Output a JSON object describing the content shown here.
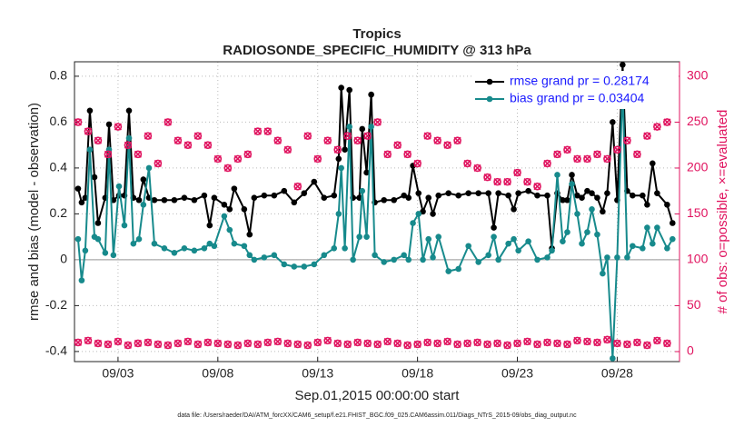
{
  "chart_data": {
    "type": "line",
    "title": "Tropics",
    "subtitle": "RADIOSONDE_SPECIFIC_HUMIDITY @ 313 hPa",
    "x_label": "Sep.01,2015 00:00:00 start",
    "y_label": "rmse and bias (model - observation)",
    "y2_label": "# of obs: o=possible, ×=evaluated",
    "footnote": "data file: /Users/raeder/DAI/ATM_forcXX/CAM6_setup/f.e21.FHIST_BGC.f09_025.CAM6assim.011/Diags_NTrS_2015-09/obs_diag_output.nc",
    "xlim": [
      0.82,
      31.12
    ],
    "xticks": [
      {
        "value": 3,
        "label": "09/03"
      },
      {
        "value": 8,
        "label": "09/08"
      },
      {
        "value": 13,
        "label": "09/13"
      },
      {
        "value": 18,
        "label": "09/18"
      },
      {
        "value": 23,
        "label": "09/23"
      },
      {
        "value": 28,
        "label": "09/28"
      }
    ],
    "ylim": [
      -0.444,
      0.863
    ],
    "yticks": [
      -0.4,
      -0.2,
      0,
      0.2,
      0.4,
      0.6,
      0.8
    ],
    "y2lim": [
      -10.9,
      315.8
    ],
    "y2ticks": [
      0,
      50,
      100,
      150,
      200,
      250,
      300
    ],
    "grid": true,
    "legend": "top-right",
    "series": [
      {
        "name": "rmse grand pr = 0.28174",
        "color": "#000000",
        "marker": "dot",
        "line": true,
        "x": [
          1.0,
          1.18,
          1.36,
          1.59,
          1.82,
          2.0,
          2.36,
          2.55,
          2.77,
          3.05,
          3.32,
          3.55,
          3.77,
          4.05,
          4.27,
          4.55,
          4.82,
          5.32,
          5.82,
          6.32,
          6.82,
          7.32,
          7.59,
          7.82,
          8.32,
          8.59,
          8.82,
          9.32,
          9.59,
          9.82,
          10.32,
          10.82,
          11.32,
          11.82,
          12.32,
          12.82,
          13.32,
          13.82,
          14.05,
          14.18,
          14.36,
          14.59,
          14.77,
          15.09,
          15.23,
          15.45,
          15.68,
          15.86,
          16.32,
          16.82,
          17.32,
          17.55,
          17.77,
          18.05,
          18.27,
          18.55,
          18.77,
          19.05,
          19.55,
          20.05,
          20.55,
          21.05,
          21.55,
          21.82,
          22.05,
          22.55,
          22.82,
          23.05,
          23.55,
          24.0,
          24.5,
          24.73,
          25.0,
          25.27,
          25.5,
          25.73,
          26.0,
          26.23,
          26.5,
          26.73,
          27.0,
          27.27,
          27.5,
          27.77,
          28.0,
          28.27,
          28.5,
          28.77,
          29.27,
          29.5,
          29.77,
          30.0,
          30.5,
          30.77
        ],
        "values": [
          0.31,
          0.25,
          0.27,
          0.65,
          0.36,
          0.16,
          0.27,
          0.59,
          0.26,
          0.28,
          0.28,
          0.65,
          0.27,
          0.26,
          0.35,
          0.27,
          0.26,
          0.26,
          0.26,
          0.27,
          0.26,
          0.28,
          0.15,
          0.27,
          0.24,
          0.22,
          0.31,
          0.22,
          0.11,
          0.27,
          0.28,
          0.28,
          0.3,
          0.25,
          0.29,
          0.34,
          0.27,
          0.28,
          0.44,
          0.75,
          0.48,
          0.74,
          0.27,
          0.27,
          0.57,
          0.38,
          0.72,
          0.25,
          0.26,
          0.26,
          0.28,
          0.27,
          0.41,
          0.29,
          0.21,
          0.27,
          0.2,
          0.28,
          0.29,
          0.28,
          0.29,
          0.29,
          0.29,
          0.14,
          0.29,
          0.28,
          0.22,
          0.29,
          0.3,
          0.28,
          0.28,
          0.05,
          0.29,
          0.26,
          0.26,
          0.37,
          0.28,
          0.27,
          0.3,
          0.29,
          0.27,
          0.21,
          0.29,
          0.6,
          0.26,
          0.85,
          0.3,
          0.28,
          0.28,
          0.24,
          0.42,
          0.29,
          0.24,
          0.16
        ]
      },
      {
        "name": "bias grand pr = 0.03404",
        "color": "#178a8c",
        "marker": "dot",
        "line": true,
        "x": [
          1.0,
          1.18,
          1.36,
          1.59,
          1.82,
          2.0,
          2.36,
          2.55,
          2.77,
          3.05,
          3.32,
          3.55,
          3.77,
          4.05,
          4.27,
          4.55,
          4.82,
          5.32,
          5.82,
          6.32,
          6.82,
          7.32,
          7.59,
          7.82,
          8.32,
          8.59,
          8.82,
          9.32,
          9.59,
          9.82,
          10.32,
          10.82,
          11.32,
          11.82,
          12.32,
          12.82,
          13.32,
          13.82,
          14.05,
          14.18,
          14.36,
          14.59,
          14.77,
          15.09,
          15.23,
          15.45,
          15.68,
          15.86,
          16.32,
          16.82,
          17.32,
          17.55,
          17.77,
          18.05,
          18.27,
          18.55,
          18.77,
          19.05,
          19.55,
          20.05,
          20.55,
          21.05,
          21.55,
          21.82,
          22.05,
          22.55,
          22.82,
          23.05,
          23.55,
          24.0,
          24.5,
          24.73,
          25.0,
          25.27,
          25.5,
          25.73,
          26.0,
          26.23,
          26.5,
          26.73,
          27.0,
          27.27,
          27.5,
          27.77,
          28.0,
          28.27,
          28.5,
          28.77,
          29.27,
          29.5,
          29.77,
          30.0,
          30.5,
          30.77
        ],
        "values": [
          0.09,
          -0.09,
          0.04,
          0.48,
          0.1,
          0.09,
          0.03,
          0.48,
          0.02,
          0.32,
          0.15,
          0.53,
          0.07,
          0.09,
          0.24,
          0.4,
          0.07,
          0.05,
          0.03,
          0.05,
          0.04,
          0.05,
          0.07,
          0.06,
          0.19,
          0.13,
          0.07,
          0.06,
          0.02,
          0.0,
          0.01,
          0.02,
          -0.02,
          -0.03,
          -0.03,
          -0.02,
          0.02,
          0.05,
          0.2,
          0.4,
          0.05,
          0.58,
          0.0,
          0.1,
          0.3,
          0.1,
          0.58,
          0.02,
          -0.01,
          0.0,
          0.02,
          0.0,
          0.16,
          0.2,
          0.0,
          0.09,
          0.01,
          0.1,
          -0.05,
          -0.04,
          0.06,
          -0.01,
          0.02,
          0.1,
          0.0,
          0.07,
          0.09,
          0.04,
          0.08,
          0.0,
          0.01,
          0.04,
          0.37,
          0.08,
          0.12,
          0.33,
          0.2,
          0.07,
          0.12,
          0.22,
          0.11,
          -0.06,
          0.01,
          -0.43,
          0.01,
          0.76,
          0.01,
          0.06,
          0.05,
          0.14,
          0.07,
          0.14,
          0.05,
          0.09
        ]
      },
      {
        "color": "#e0135f",
        "marker": "ox",
        "line": false,
        "axis": "y2",
        "x": [
          1.0,
          1.5,
          2.0,
          2.5,
          3.0,
          3.5,
          4.0,
          4.5,
          5.0,
          5.5,
          6.0,
          6.5,
          7.0,
          7.5,
          8.0,
          8.5,
          9.0,
          9.5,
          10.0,
          10.5,
          11.0,
          11.5,
          12.0,
          12.5,
          13.0,
          13.5,
          14.0,
          14.5,
          15.0,
          15.5,
          16.0,
          16.5,
          17.0,
          17.5,
          18.0,
          18.5,
          19.0,
          19.5,
          20.0,
          20.5,
          21.0,
          21.5,
          22.0,
          22.5,
          23.0,
          23.5,
          24.0,
          24.5,
          25.0,
          25.5,
          26.0,
          26.5,
          27.0,
          27.5,
          28.0,
          28.5,
          29.0,
          29.5,
          30.0,
          30.5
        ],
        "values": [
          250,
          240,
          230,
          215,
          245,
          225,
          215,
          235,
          205,
          250,
          230,
          225,
          235,
          225,
          210,
          200,
          210,
          215,
          240,
          240,
          230,
          220,
          180,
          235,
          210,
          230,
          220,
          235,
          230,
          235,
          250,
          215,
          225,
          215,
          205,
          235,
          230,
          225,
          230,
          205,
          200,
          190,
          185,
          185,
          195,
          185,
          180,
          205,
          215,
          220,
          210,
          210,
          215,
          210,
          220,
          230,
          215,
          235,
          245,
          250
        ]
      },
      {
        "color": "#e0135f",
        "marker": "ox",
        "line": false,
        "axis": "y2",
        "x": [
          1.0,
          1.5,
          2.0,
          2.5,
          3.0,
          3.5,
          4.0,
          4.5,
          5.0,
          5.5,
          6.0,
          6.5,
          7.0,
          7.5,
          8.0,
          8.5,
          9.0,
          9.5,
          10.0,
          10.5,
          11.0,
          11.5,
          12.0,
          12.5,
          13.0,
          13.5,
          14.0,
          14.5,
          15.0,
          15.5,
          16.0,
          16.5,
          17.0,
          17.5,
          18.0,
          18.5,
          19.0,
          19.5,
          20.0,
          20.5,
          21.0,
          21.5,
          22.0,
          22.5,
          23.0,
          23.5,
          24.0,
          24.5,
          25.0,
          25.5,
          26.0,
          26.5,
          27.0,
          27.5,
          28.0,
          28.5,
          29.0,
          29.5,
          30.0,
          30.5
        ],
        "values": [
          10,
          12,
          9,
          8,
          11,
          7,
          9,
          10,
          8,
          7,
          9,
          11,
          8,
          10,
          9,
          8,
          7,
          9,
          8,
          10,
          11,
          9,
          8,
          7,
          10,
          12,
          9,
          8,
          10,
          9,
          8,
          11,
          9,
          7,
          8,
          10,
          9,
          11,
          8,
          9,
          10,
          8,
          9,
          7,
          9,
          11,
          8,
          10,
          9,
          8,
          12,
          11,
          10,
          13,
          9,
          8,
          10,
          7,
          12,
          9
        ]
      }
    ]
  }
}
